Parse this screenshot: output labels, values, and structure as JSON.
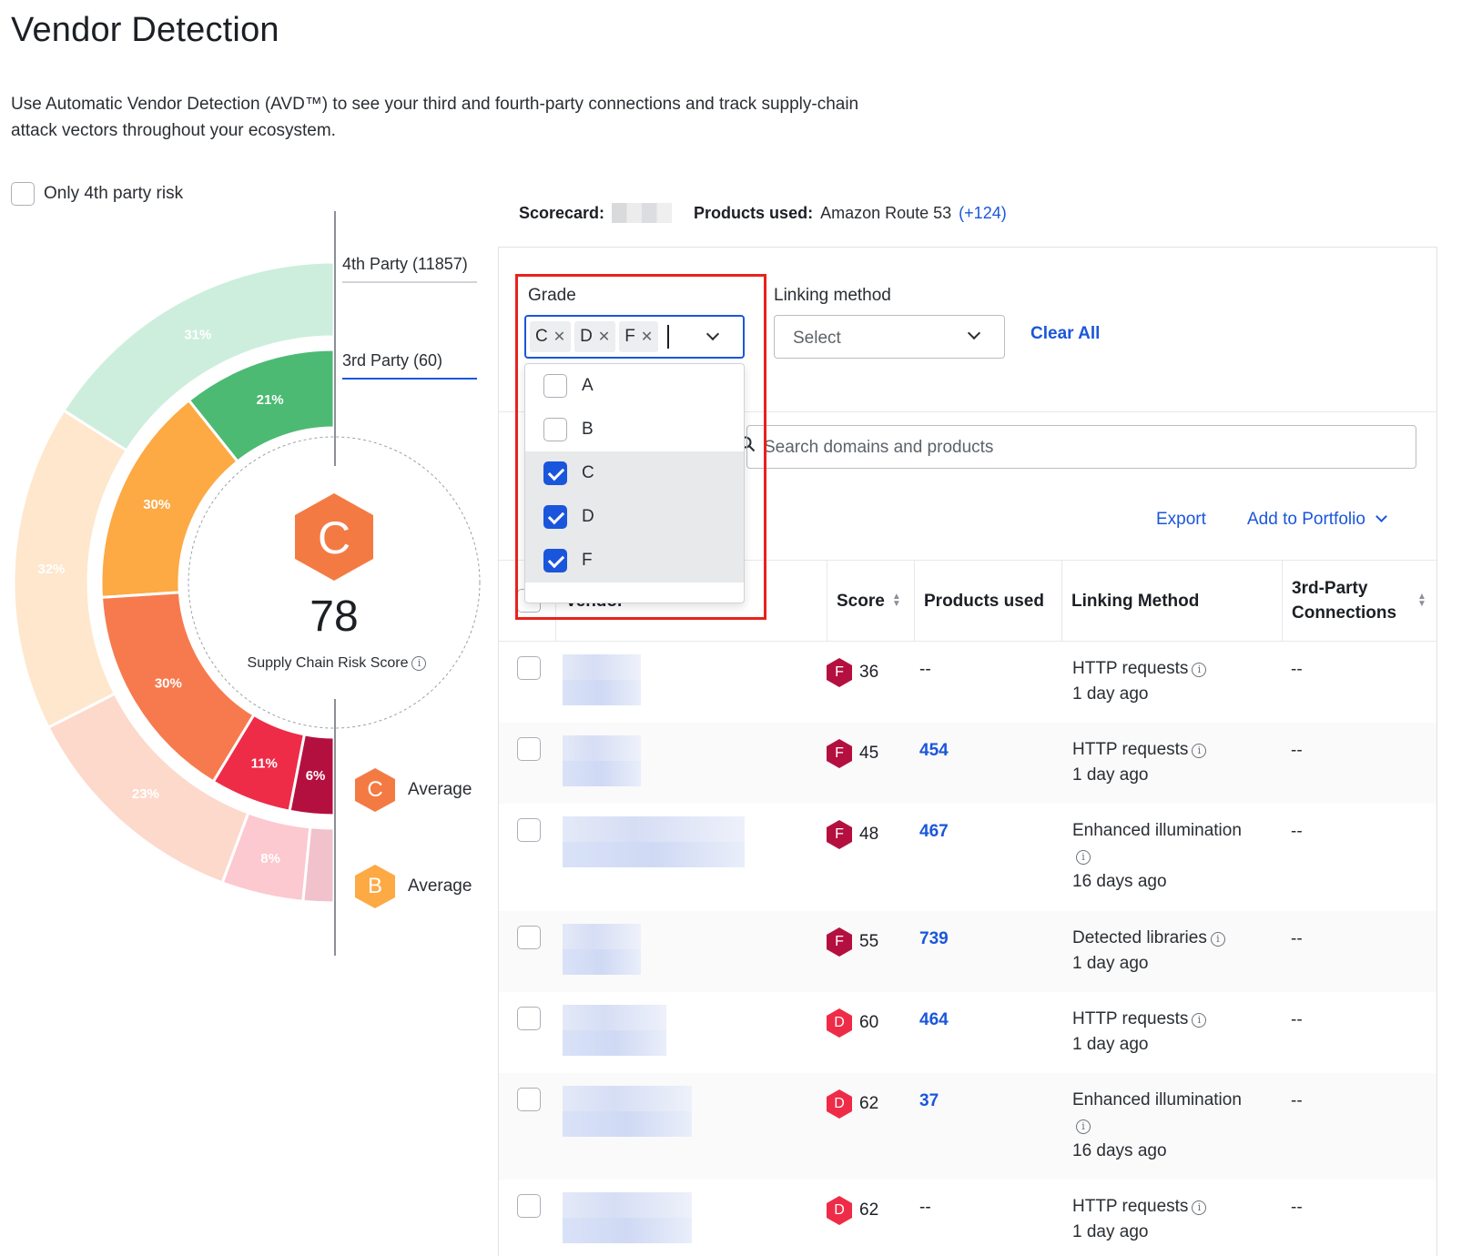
{
  "page": {
    "title": "Vendor Detection",
    "description": "Use Automatic Vendor Detection (AVD™) to see your third and fourth-party connections and track supply-chain attack vectors throughout your ecosystem.",
    "only_4th_party_label": "Only 4th party risk"
  },
  "donut": {
    "tabs": {
      "fourth": "4th Party (11857)",
      "third": "3rd Party (60)"
    },
    "outer_ring": [
      {
        "grade": "A",
        "pct": "31%",
        "value": 31,
        "color": "#cdeedd"
      },
      {
        "grade": "B",
        "pct": "32%",
        "value": 32,
        "color": "#fee7cc"
      },
      {
        "grade": "C",
        "pct": "23%",
        "value": 23,
        "color": "#fdd9cc"
      },
      {
        "grade": "D",
        "pct": "8%",
        "value": 8,
        "color": "#fbc9cf"
      },
      {
        "grade": "F",
        "pct": "",
        "value": 3,
        "color": "#f1c2cb"
      }
    ],
    "inner_ring": [
      {
        "grade": "A",
        "pct": "21%",
        "value": 21,
        "color": "#4cba73"
      },
      {
        "grade": "B",
        "pct": "30%",
        "value": 30,
        "color": "#fda944"
      },
      {
        "grade": "C",
        "pct": "30%",
        "value": 30,
        "color": "#f77a4e"
      },
      {
        "grade": "D",
        "pct": "11%",
        "value": 11,
        "color": "#ee2c48"
      },
      {
        "grade": "F",
        "pct": "6%",
        "value": 6,
        "color": "#b4103f"
      }
    ],
    "center_grade": "C",
    "center_grade_color": "#f47a44",
    "center_score": "78",
    "center_label": "Supply Chain Risk Score",
    "averages": [
      {
        "grade": "C",
        "label": "Average",
        "color": "#f47a44"
      },
      {
        "grade": "B",
        "label": "Average",
        "color": "#fda944"
      }
    ]
  },
  "scorecard": {
    "scorecard_label": "Scorecard:",
    "products_label": "Products used:",
    "products_value": "Amazon Route 53",
    "products_more": "(+124)"
  },
  "filters": {
    "grade_label": "Grade",
    "grade_chips": [
      "C",
      "D",
      "F"
    ],
    "grade_options": [
      {
        "label": "A",
        "checked": false
      },
      {
        "label": "B",
        "checked": false
      },
      {
        "label": "C",
        "checked": true
      },
      {
        "label": "D",
        "checked": true
      },
      {
        "label": "F",
        "checked": true
      }
    ],
    "linking_label": "Linking method",
    "linking_placeholder": "Select",
    "clear_all": "Clear All",
    "search_placeholder": "Search domains and products"
  },
  "actions": {
    "export": "Export",
    "add_to_portfolio": "Add to Portfolio"
  },
  "table": {
    "headers": {
      "vendor": "Vendor",
      "score": "Score",
      "products": "Products used",
      "linking": "Linking Method",
      "connections": "3rd-Party Connections"
    },
    "rows": [
      {
        "grade": "F",
        "score": "36",
        "products": "--",
        "linking": "HTTP requests",
        "when": "1 day ago",
        "connections": "--"
      },
      {
        "grade": "F",
        "score": "45",
        "products": "454",
        "linking": "HTTP requests",
        "when": "1 day ago",
        "connections": "--"
      },
      {
        "grade": "F",
        "score": "48",
        "products": "467",
        "linking": "Enhanced illumination",
        "when": "16 days ago",
        "connections": "--"
      },
      {
        "grade": "F",
        "score": "55",
        "products": "739",
        "linking": "Detected libraries",
        "when": "1 day ago",
        "connections": "--"
      },
      {
        "grade": "D",
        "score": "60",
        "products": "464",
        "linking": "HTTP requests",
        "when": "1 day ago",
        "connections": "--"
      },
      {
        "grade": "D",
        "score": "62",
        "products": "37",
        "linking": "Enhanced illumination",
        "when": "16 days ago",
        "connections": "--"
      },
      {
        "grade": "D",
        "score": "62",
        "products": "--",
        "linking": "HTTP requests",
        "when": "1 day ago",
        "connections": "--"
      }
    ],
    "grade_colors": {
      "F": "#b4103f",
      "D": "#ee2c48"
    }
  }
}
